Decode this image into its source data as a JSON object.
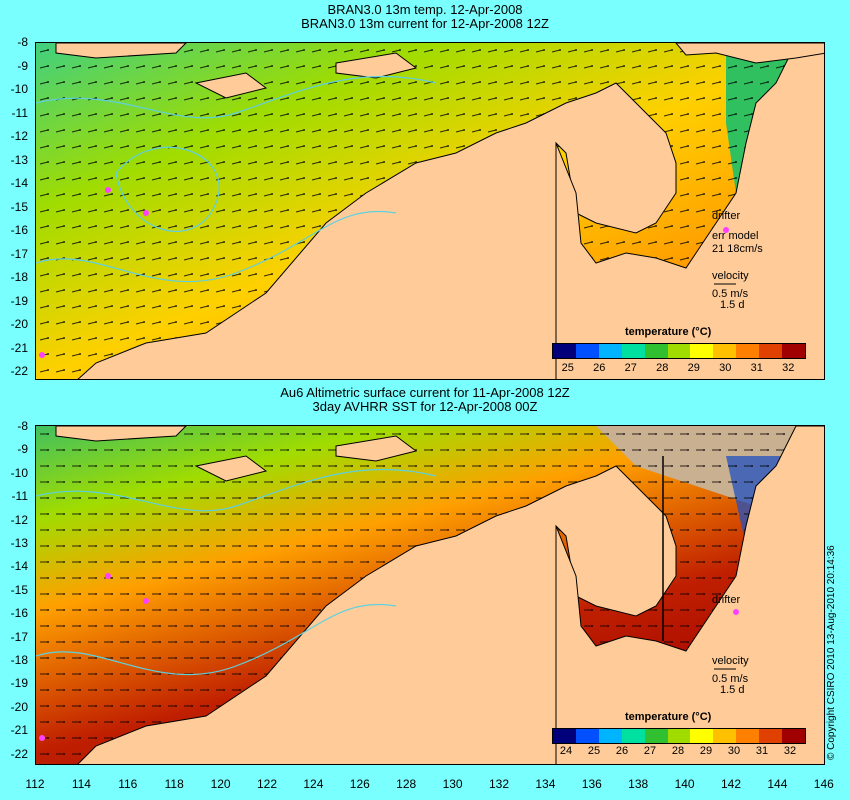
{
  "panels": [
    {
      "title1": "BRAN3.0 13m temp. 12-Apr-2008",
      "title2": "BRAN3.0 13m current for 12-Apr-2008 12Z",
      "drifter_label": "drifter",
      "err_model_label": "err model",
      "err_model_value": "21 18cm/s",
      "velocity_label": "velocity",
      "velocity_scale": "0.5 m/s",
      "velocity_days": "1.5 d",
      "colorbar_title": "temperature (°C)",
      "colorbar_labels": [
        "25",
        "26",
        "27",
        "28",
        "29",
        "30",
        "31",
        "32"
      ]
    },
    {
      "title1": "Au6 Altimetric surface current for 11-Apr-2008 12Z",
      "title2": "3day AVHRR SST for 12-Apr-2008 00Z",
      "drifter_label": "drifter",
      "velocity_label": "velocity",
      "velocity_scale": "0.5 m/s",
      "velocity_days": "1.5 d",
      "colorbar_title": "temperature (°C)",
      "colorbar_labels": [
        "24",
        "25",
        "26",
        "27",
        "28",
        "29",
        "30",
        "31",
        "32"
      ]
    }
  ],
  "y_ticks": [
    "-8",
    "-9",
    "-10",
    "-11",
    "-12",
    "-13",
    "-14",
    "-15",
    "-16",
    "-17",
    "-18",
    "-19",
    "-20",
    "-21",
    "-22"
  ],
  "x_ticks": [
    "112",
    "114",
    "116",
    "118",
    "120",
    "122",
    "124",
    "126",
    "128",
    "130",
    "132",
    "134",
    "136",
    "138",
    "140",
    "142",
    "144",
    "146"
  ],
  "copyright": "© Copyright CSIRO 2010   13-Aug-2010 20:14:36",
  "colors": {
    "background": "#7affff",
    "land": "#ffcc99",
    "colorbar": [
      "#00007a",
      "#0050ff",
      "#00b4ff",
      "#00e0a0",
      "#30c030",
      "#a0dc00",
      "#ffff00",
      "#ffc000",
      "#ff8000",
      "#e04000",
      "#a00000"
    ]
  }
}
